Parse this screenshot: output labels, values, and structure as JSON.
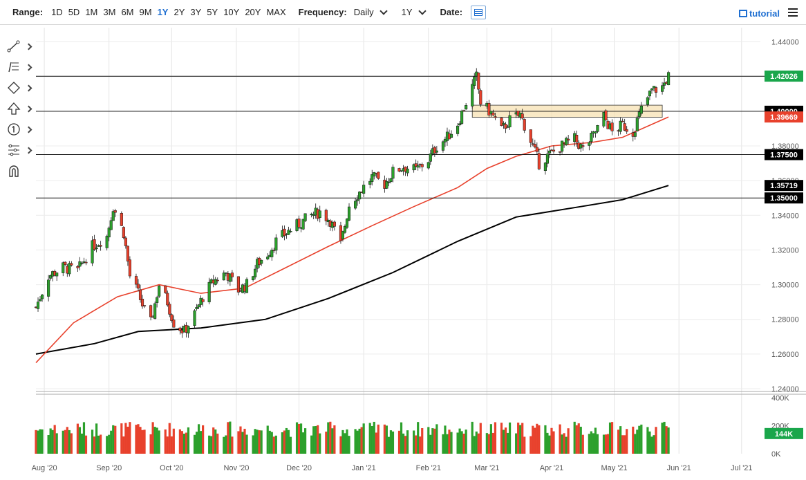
{
  "toolbar": {
    "range_label": "Range:",
    "ranges": [
      "1D",
      "5D",
      "1M",
      "3M",
      "6M",
      "9M",
      "1Y",
      "2Y",
      "3Y",
      "5Y",
      "10Y",
      "20Y",
      "MAX"
    ],
    "active_range": "1Y",
    "frequency_label": "Frequency:",
    "frequency_value": "Daily",
    "period_value": "1Y",
    "date_label": "Date:",
    "tutorial_label": "tutorial"
  },
  "icons": {
    "tools": [
      "trend-line-icon",
      "fibonacci-icon",
      "shapes-icon",
      "arrow-icon",
      "number-marker-icon",
      "pitchfork-icon",
      "magnet-icon"
    ]
  },
  "colors": {
    "up": "#2ca02c",
    "down": "#e8412c",
    "ma50": "#e8412c",
    "ma200": "#000000",
    "last_price": "#1aa64b",
    "zone": "#f6dfae"
  },
  "chart_data": {
    "type": "candlestick",
    "price_axis": {
      "ylim": [
        1.24,
        1.4482
      ],
      "ticks": [
        "1.44000",
        "1.42000",
        "1.40000",
        "1.38000",
        "1.36000",
        "1.34000",
        "1.32000",
        "1.30000",
        "1.28000",
        "1.26000",
        "1.24000"
      ]
    },
    "volume_axis": {
      "ylim": [
        0,
        400000
      ],
      "ticks": [
        "400K",
        "200K",
        "0K"
      ]
    },
    "x_ticks": [
      "Aug '20",
      "Sep '20",
      "Oct '20",
      "Nov '20",
      "Dec '20",
      "Jan '21",
      "Feb '21",
      "Mar '21",
      "Apr '21",
      "May '21",
      "Jun '21",
      "Jul '21"
    ],
    "x_tick_dates": [
      "2020-08-01",
      "2020-09-01",
      "2020-10-01",
      "2020-11-01",
      "2020-12-01",
      "2021-01-01",
      "2021-02-01",
      "2021-03-01",
      "2021-04-01",
      "2021-05-01",
      "2021-06-01",
      "2021-07-01"
    ],
    "x_range": [
      "2020-07-28",
      "2021-07-10"
    ],
    "horizontal_lines": [
      1.4202,
      1.4,
      1.375,
      1.35
    ],
    "labels": [
      {
        "text": "1.42026",
        "value": 1.42026,
        "color": "#1aa64b"
      },
      {
        "text": "1.40000",
        "value": 1.4,
        "color": "#000000"
      },
      {
        "text": "1.39669",
        "value": 1.39669,
        "color": "#e8412c"
      },
      {
        "text": "1.37500",
        "value": 1.375,
        "color": "#000000"
      },
      {
        "text": "1.35719",
        "value": 1.35719,
        "color": "#000000"
      },
      {
        "text": "1.35000",
        "value": 1.35,
        "color": "#000000"
      }
    ],
    "volume_label": "144K",
    "zone": {
      "from": "2021-02-22",
      "to": "2021-05-24",
      "low": 1.3965,
      "high": 1.4035
    },
    "closes": [
      [
        "2020-07-28",
        1.287
      ],
      [
        "2020-08-03",
        1.305
      ],
      [
        "2020-08-10",
        1.31
      ],
      [
        "2020-08-17",
        1.308
      ],
      [
        "2020-08-24",
        1.322
      ],
      [
        "2020-08-31",
        1.328
      ],
      [
        "2020-09-03",
        1.345
      ],
      [
        "2020-09-08",
        1.33
      ],
      [
        "2020-09-11",
        1.305
      ],
      [
        "2020-09-15",
        1.295
      ],
      [
        "2020-09-18",
        1.285
      ],
      [
        "2020-09-21",
        1.278
      ],
      [
        "2020-09-25",
        1.3
      ],
      [
        "2020-09-29",
        1.29
      ],
      [
        "2020-10-02",
        1.278
      ],
      [
        "2020-10-07",
        1.273
      ],
      [
        "2020-10-12",
        1.283
      ],
      [
        "2020-10-16",
        1.293
      ],
      [
        "2020-10-21",
        1.302
      ],
      [
        "2020-10-27",
        1.307
      ],
      [
        "2020-11-02",
        1.297
      ],
      [
        "2020-11-06",
        1.3
      ],
      [
        "2020-11-11",
        1.312
      ],
      [
        "2020-11-16",
        1.318
      ],
      [
        "2020-11-20",
        1.325
      ],
      [
        "2020-11-25",
        1.33
      ],
      [
        "2020-12-01",
        1.335
      ],
      [
        "2020-12-07",
        1.34
      ],
      [
        "2020-12-11",
        1.342
      ],
      [
        "2020-12-16",
        1.337
      ],
      [
        "2020-12-21",
        1.323
      ],
      [
        "2020-12-25",
        1.346
      ],
      [
        "2020-12-31",
        1.355
      ],
      [
        "2021-01-05",
        1.362
      ],
      [
        "2021-01-11",
        1.358
      ],
      [
        "2021-01-15",
        1.365
      ],
      [
        "2021-01-20",
        1.368
      ],
      [
        "2021-01-26",
        1.366
      ],
      [
        "2021-02-01",
        1.372
      ],
      [
        "2021-02-05",
        1.38
      ],
      [
        "2021-02-10",
        1.385
      ],
      [
        "2021-02-15",
        1.393
      ],
      [
        "2021-02-19",
        1.405
      ],
      [
        "2021-02-24",
        1.42
      ],
      [
        "2021-02-26",
        1.405
      ],
      [
        "2021-03-03",
        1.399
      ],
      [
        "2021-03-08",
        1.389
      ],
      [
        "2021-03-12",
        1.395
      ],
      [
        "2021-03-17",
        1.398
      ],
      [
        "2021-03-22",
        1.383
      ],
      [
        "2021-03-26",
        1.37
      ],
      [
        "2021-03-31",
        1.375
      ],
      [
        "2021-04-06",
        1.38
      ],
      [
        "2021-04-12",
        1.384
      ],
      [
        "2021-04-16",
        1.378
      ],
      [
        "2021-04-21",
        1.386
      ],
      [
        "2021-04-26",
        1.397
      ],
      [
        "2021-04-30",
        1.388
      ],
      [
        "2021-05-05",
        1.392
      ],
      [
        "2021-05-10",
        1.388
      ],
      [
        "2021-05-14",
        1.401
      ],
      [
        "2021-05-19",
        1.412
      ],
      [
        "2021-05-24",
        1.414
      ],
      [
        "2021-05-27",
        1.4202
      ]
    ],
    "ma50": [
      [
        "2020-07-28",
        1.255
      ],
      [
        "2020-08-15",
        1.278
      ],
      [
        "2020-09-05",
        1.293
      ],
      [
        "2020-09-25",
        1.3
      ],
      [
        "2020-10-15",
        1.295
      ],
      [
        "2020-11-05",
        1.298
      ],
      [
        "2020-11-25",
        1.31
      ],
      [
        "2020-12-15",
        1.322
      ],
      [
        "2021-01-05",
        1.334
      ],
      [
        "2021-01-25",
        1.345
      ],
      [
        "2021-02-15",
        1.356
      ],
      [
        "2021-03-01",
        1.367
      ],
      [
        "2021-03-15",
        1.374
      ],
      [
        "2021-04-01",
        1.38
      ],
      [
        "2021-04-20",
        1.382
      ],
      [
        "2021-05-05",
        1.385
      ],
      [
        "2021-05-27",
        1.3967
      ]
    ],
    "ma200": [
      [
        "2020-07-28",
        1.26
      ],
      [
        "2020-08-25",
        1.266
      ],
      [
        "2020-09-15",
        1.273
      ],
      [
        "2020-10-15",
        1.275
      ],
      [
        "2020-11-15",
        1.28
      ],
      [
        "2020-12-15",
        1.292
      ],
      [
        "2021-01-15",
        1.307
      ],
      [
        "2021-02-15",
        1.325
      ],
      [
        "2021-03-15",
        1.339
      ],
      [
        "2021-04-15",
        1.345
      ],
      [
        "2021-05-05",
        1.349
      ],
      [
        "2021-05-27",
        1.3572
      ]
    ]
  }
}
